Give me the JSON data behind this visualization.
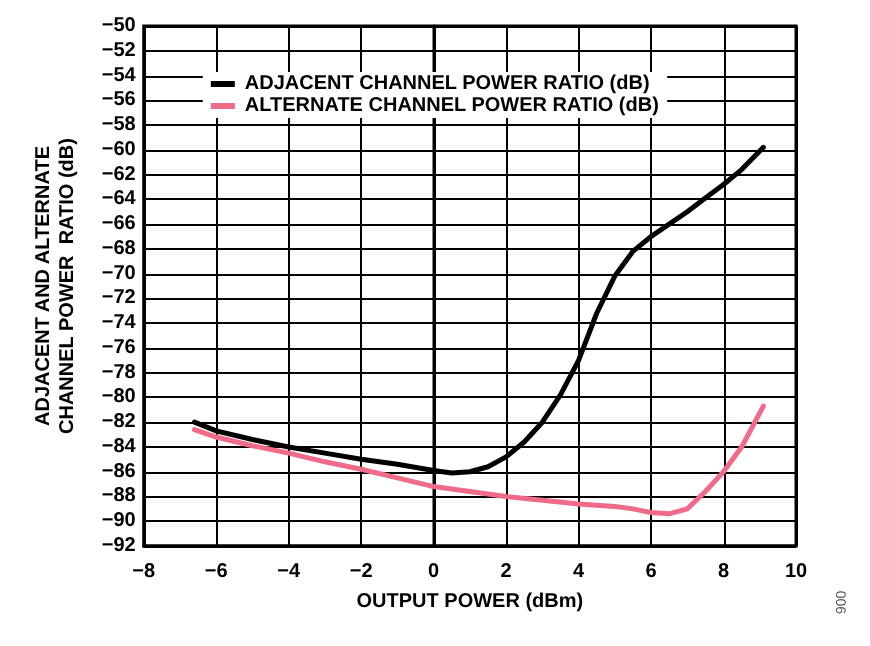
{
  "chart_data": {
    "type": "line",
    "xlabel": "OUTPUT POWER (dBm)",
    "ylabel": "ADJACENT AND ALTERNATE\nCHANNEL POWER  RATIO (dB)",
    "xlim": [
      -8,
      10
    ],
    "xticks": [
      -8,
      -6,
      -4,
      -2,
      0,
      2,
      4,
      6,
      8,
      10
    ],
    "ylim": [
      -92,
      -50
    ],
    "yticks": [
      -92,
      -90,
      -88,
      -86,
      -84,
      -82,
      -80,
      -78,
      -76,
      -74,
      -72,
      -70,
      -68,
      -66,
      -64,
      -62,
      -60,
      -58,
      -56,
      -54,
      -52,
      -50
    ],
    "grid": true,
    "legend": "top",
    "marker": "none",
    "line_style": "solid",
    "annotations": [
      "006"
    ],
    "series": [
      {
        "name": "ADJACENT CHANNEL POWER RATIO (dB)",
        "color": "#000000",
        "x": [
          -6.6,
          -6,
          -5,
          -4,
          -3,
          -2,
          -1,
          0,
          0.5,
          1,
          1.5,
          2,
          2.5,
          3,
          3.5,
          4,
          4.5,
          5,
          5.5,
          6,
          6.5,
          7,
          7.5,
          8,
          8.5,
          9.1
        ],
        "values": [
          -82,
          -82.7,
          -83.4,
          -84,
          -84.5,
          -85,
          -85.4,
          -85.9,
          -86.1,
          -86,
          -85.6,
          -84.8,
          -83.6,
          -82,
          -79.8,
          -77,
          -73.2,
          -70.2,
          -68.2,
          -67,
          -66,
          -65,
          -63.9,
          -62.8,
          -61.6,
          -59.8
        ]
      },
      {
        "name": "ALTERNATE CHANNEL POWER RATIO (dB)",
        "color": "#f06a8a",
        "x": [
          -6.6,
          -6,
          -5,
          -4,
          -3,
          -2,
          -1,
          0,
          1,
          2,
          3,
          4,
          5,
          5.5,
          6,
          6.5,
          7,
          7.5,
          8,
          8.5,
          9.1
        ],
        "values": [
          -82.6,
          -83.2,
          -83.9,
          -84.5,
          -85.2,
          -85.8,
          -86.5,
          -87.2,
          -87.6,
          -88,
          -88.3,
          -88.6,
          -88.8,
          -89,
          -89.3,
          -89.4,
          -89,
          -87.6,
          -86,
          -84,
          -80.7
        ]
      }
    ]
  }
}
